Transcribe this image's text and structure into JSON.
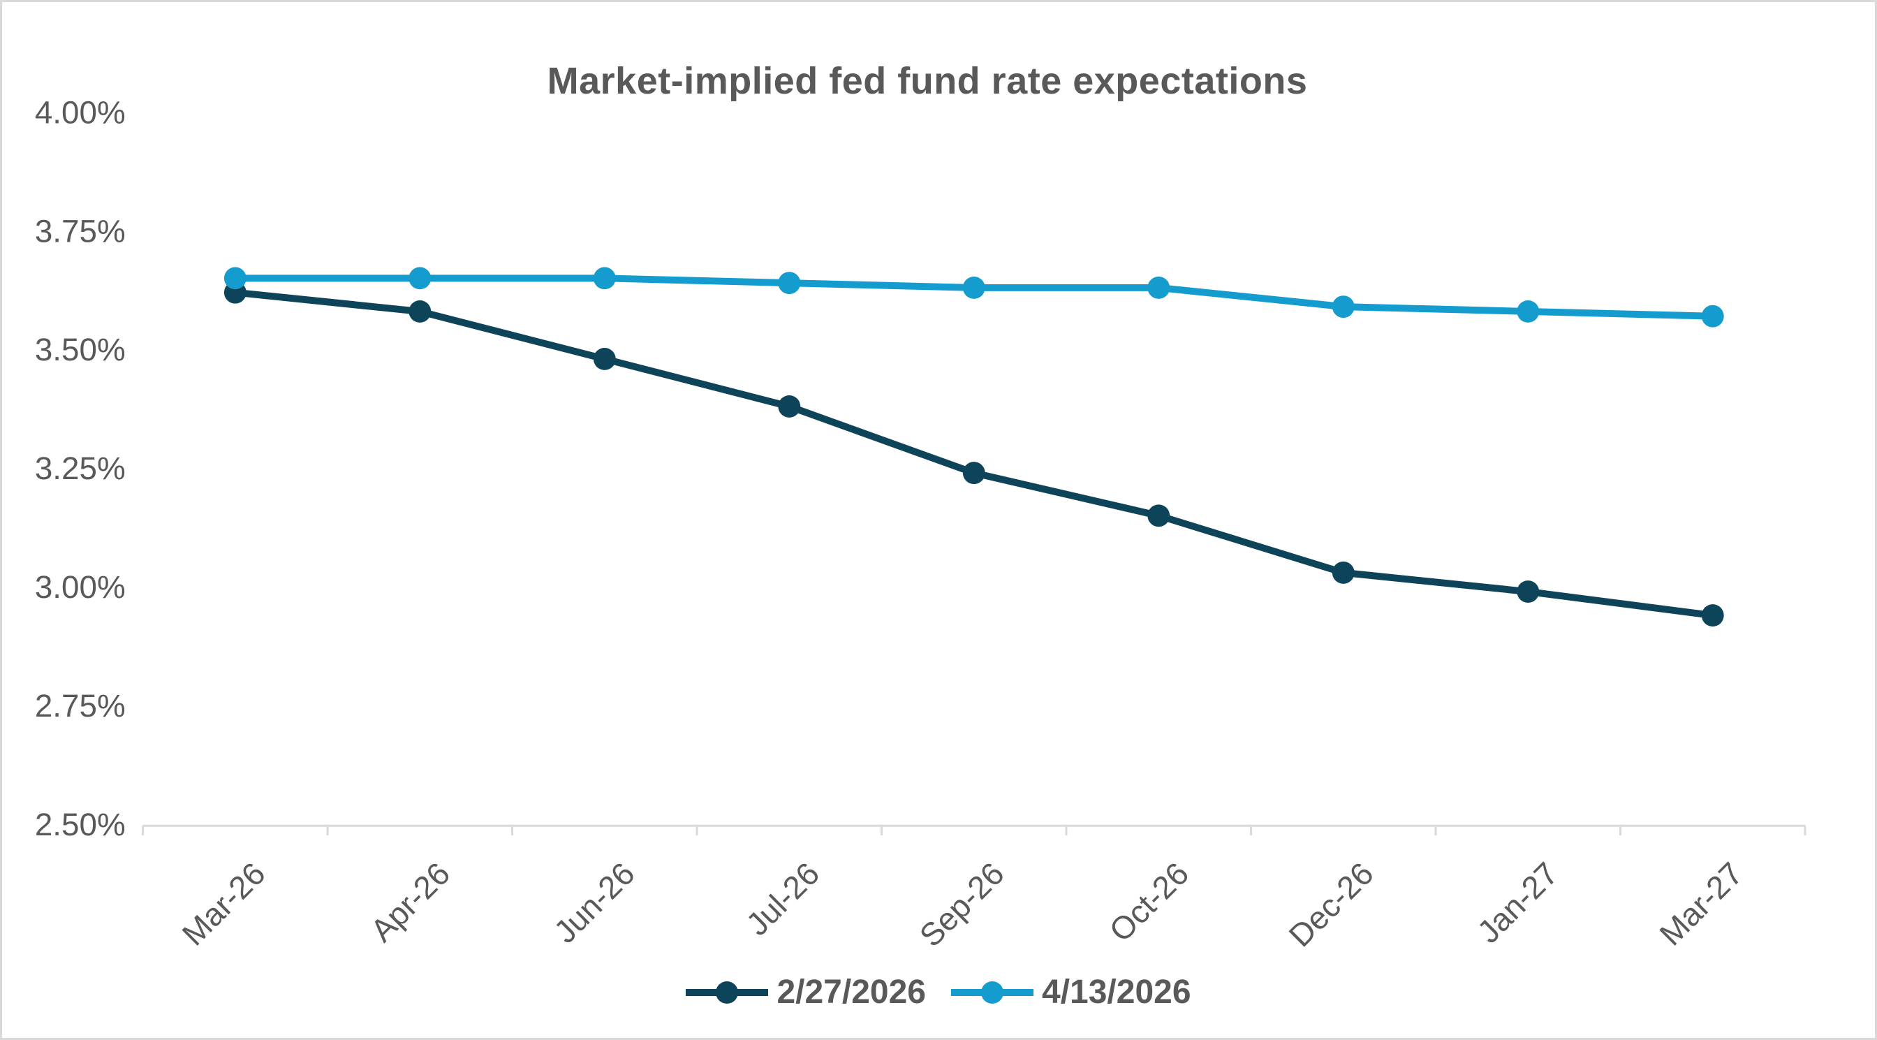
{
  "chart_data": {
    "type": "line",
    "title": "Market-implied fed fund rate expectations",
    "categories": [
      "Mar-26",
      "Apr-26",
      "Jun-26",
      "Jul-26",
      "Sep-26",
      "Oct-26",
      "Dec-26",
      "Jan-27",
      "Mar-27"
    ],
    "series": [
      {
        "name": "2/27/2026",
        "color": "#0E4459",
        "values": [
          3.62,
          3.58,
          3.48,
          3.38,
          3.24,
          3.15,
          3.03,
          2.99,
          2.94
        ]
      },
      {
        "name": "4/13/2026",
        "color": "#149CCE",
        "values": [
          3.65,
          3.65,
          3.65,
          3.64,
          3.63,
          3.63,
          3.59,
          3.58,
          3.57
        ]
      }
    ],
    "y_axis": {
      "min": 2.5,
      "max": 4.0,
      "step": 0.25,
      "tick_labels": [
        "4.00%",
        "3.75%",
        "3.50%",
        "3.25%",
        "3.00%",
        "2.75%",
        "2.50%"
      ]
    },
    "x_axis": {
      "label_rotation_deg": -45
    },
    "grid": false,
    "legend_position": "bottom",
    "text_color": "#595959",
    "axis_color": "#D9D9D9"
  }
}
